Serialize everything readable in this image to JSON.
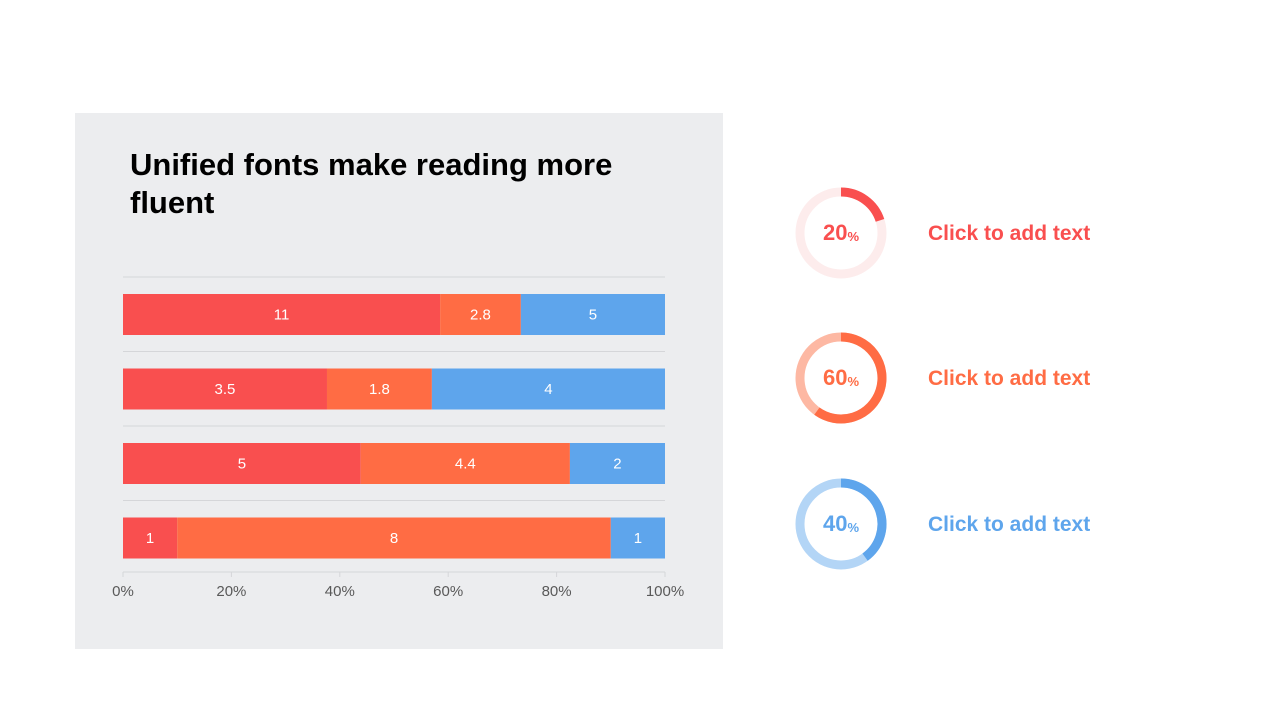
{
  "chart_data": {
    "type": "bar",
    "orientation": "horizontal",
    "stacked": "percent",
    "title": "Unified fonts make reading more fluent",
    "categories": [
      "",
      "",
      "",
      ""
    ],
    "series": [
      {
        "values": [
          11,
          3.5,
          5,
          1
        ],
        "color": "#f94f4f"
      },
      {
        "values": [
          2.8,
          1.8,
          4.4,
          8
        ],
        "color": "#ff6c44"
      },
      {
        "values": [
          5,
          4,
          2,
          1
        ],
        "color": "#5ea5ec"
      }
    ],
    "x_ticks": [
      "0%",
      "20%",
      "40%",
      "60%",
      "80%",
      "100%"
    ],
    "xlim": [
      0,
      100
    ],
    "grid": true,
    "legend": "none",
    "data_labels": true
  },
  "kpis": [
    {
      "value": "20",
      "unit": "%",
      "fraction": 0.2,
      "label": "Click to add text",
      "color": "#f94f4f",
      "track": "#fdecec"
    },
    {
      "value": "60",
      "unit": "%",
      "fraction": 0.6,
      "label": "Click to add text",
      "color": "#ff6c44",
      "track": "#fdb8a3"
    },
    {
      "value": "40",
      "unit": "%",
      "fraction": 0.4,
      "label": "Click to add text",
      "color": "#5ea5ec",
      "track": "#b3d5f6"
    }
  ]
}
